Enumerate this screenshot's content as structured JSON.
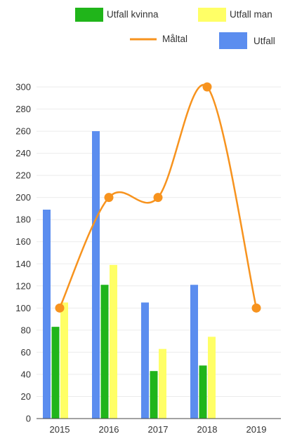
{
  "chart_data": {
    "type": "bar",
    "categories": [
      "2015",
      "2016",
      "2017",
      "2018",
      "2019"
    ],
    "series": [
      {
        "name": "Utfall",
        "kind": "bar",
        "color": "#5b8def",
        "values": [
          189,
          260,
          105,
          121,
          null
        ]
      },
      {
        "name": "Utfall kvinna",
        "kind": "bar",
        "color": "#20b51a",
        "values": [
          83,
          121,
          43,
          48,
          null
        ]
      },
      {
        "name": "Utfall man",
        "kind": "bar",
        "color": "#ffff66",
        "values": [
          105,
          139,
          63,
          74,
          null
        ]
      },
      {
        "name": "Måltal",
        "kind": "line",
        "color": "#f7931e",
        "values": [
          100,
          200,
          200,
          300,
          100
        ]
      }
    ],
    "ylim": [
      0,
      300
    ],
    "yticks": [
      "0",
      "20",
      "40",
      "60",
      "80",
      "100",
      "120",
      "140",
      "160",
      "180",
      "200",
      "220",
      "240",
      "260",
      "280",
      "300"
    ],
    "grid": true,
    "legend_position": "top"
  }
}
